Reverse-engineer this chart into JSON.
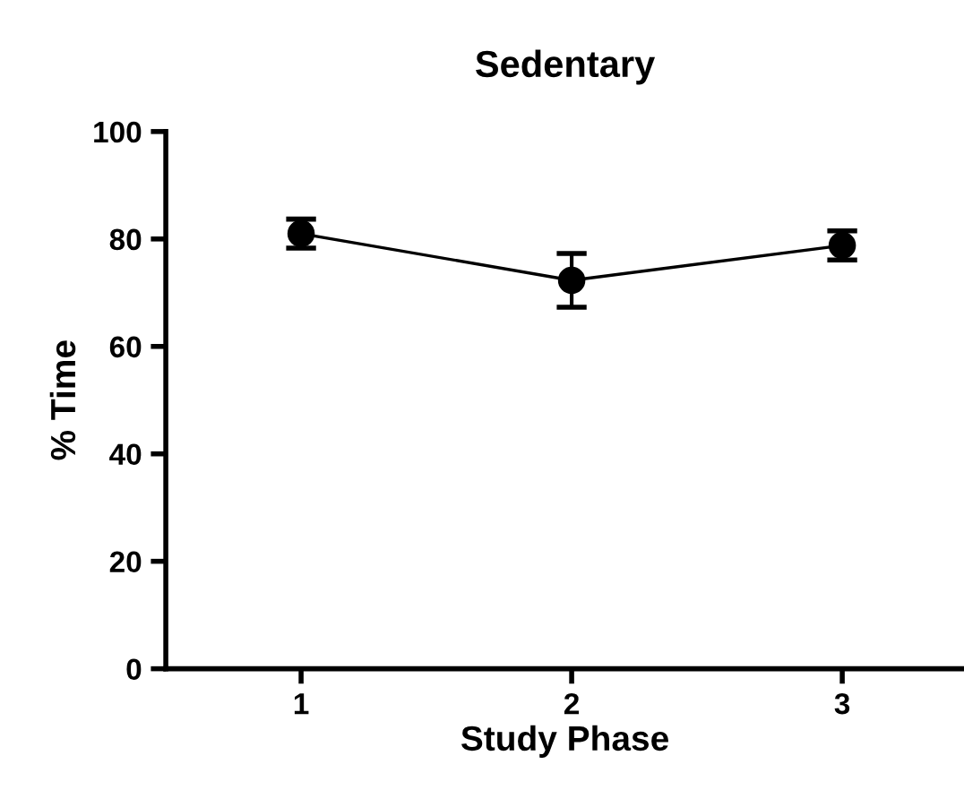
{
  "chart_data": {
    "type": "line",
    "title": "Sedentary",
    "xlabel": "Study Phase",
    "ylabel": "% Time",
    "x": [
      1,
      2,
      3
    ],
    "series": [
      {
        "color": "#000000",
        "values": [
          81.0,
          72.3,
          78.8
        ],
        "errors": [
          2.7,
          5.0,
          2.7
        ]
      }
    ],
    "xlim": [
      0.5,
      3.45
    ],
    "xticks": [
      1,
      2,
      3
    ],
    "ylim": [
      0,
      100
    ],
    "yticks": [
      0,
      20,
      40,
      60,
      80,
      100
    ],
    "marker": "circle",
    "line_style": "solid",
    "grid": false,
    "legend": false
  }
}
